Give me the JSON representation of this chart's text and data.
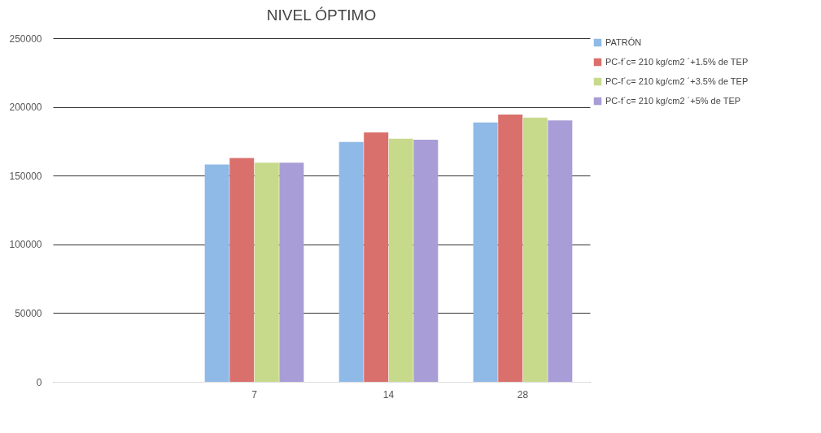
{
  "chart_data": {
    "type": "bar",
    "title": "NIVEL ÓPTIMO",
    "categories": [
      null,
      "7",
      "14",
      "28"
    ],
    "series": [
      {
        "name": "PATRÓN",
        "color": "#8fb9e6",
        "values": [
          null,
          158100,
          174500,
          188700
        ]
      },
      {
        "name": "PC-f´c= 210 kg/cm2 ´+1.5% de TEP",
        "color": "#d9706c",
        "values": [
          null,
          162800,
          181400,
          194500
        ]
      },
      {
        "name": "PC-f´c= 210 kg/cm2 ´+3.5% de TEP",
        "color": "#c7da8c",
        "values": [
          null,
          159500,
          176900,
          192200
        ]
      },
      {
        "name": "PC-f´c= 210 kg/cm2 ´+5% de TEP",
        "color": "#a89dd6",
        "values": [
          null,
          159500,
          176100,
          190200
        ]
      }
    ],
    "ylim": [
      0,
      250000
    ],
    "yticks": [
      0,
      50000,
      100000,
      150000,
      200000,
      250000
    ],
    "grid": "y",
    "legend": "right"
  }
}
